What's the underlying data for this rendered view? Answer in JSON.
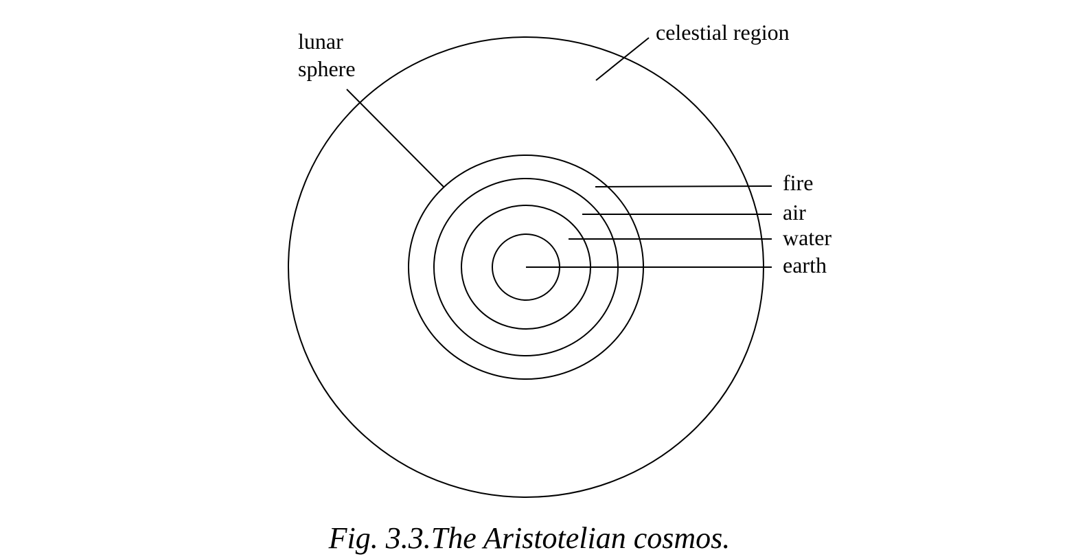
{
  "diagram": {
    "labels": {
      "lunar_line1": "lunar",
      "lunar_line2": "sphere",
      "celestial": "celestial region",
      "fire": "fire",
      "air": "air",
      "water": "water",
      "earth": "earth"
    },
    "caption": "Fig. 3.3.The Aristotelian cosmos.",
    "line_color": "#000000",
    "background_color": "#ffffff"
  }
}
